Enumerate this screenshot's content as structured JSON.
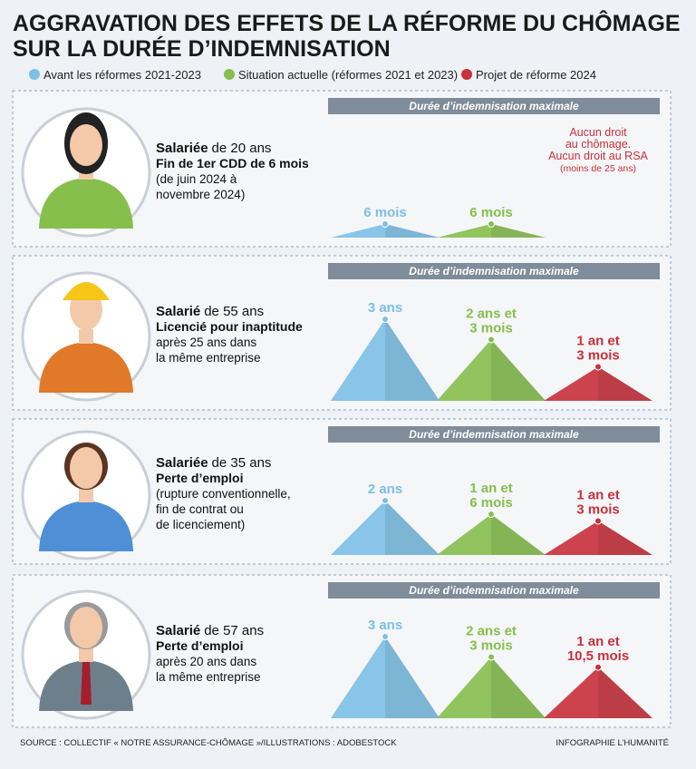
{
  "title": [
    "AGGRAVATION DES EFFETS DE LA RÉFORME DU CHÔMAGE",
    "SUR LA DURÉE D’INDEMNISATION"
  ],
  "legend": [
    {
      "label": "Avant les réformes 2021-2023",
      "color": "#7cc0e6"
    },
    {
      "label": "Situation actuelle (réformes 2021 et 2023)",
      "color": "#86bf4c"
    },
    {
      "label": "Projet de réforme 2024",
      "color": "#c8303a"
    }
  ],
  "panel_header": "Durée d’indemnisation maximale",
  "panels": [
    {
      "role": "Salariée",
      "age": "de 20 ans",
      "situation": [
        "Fin de 1er CDD de 6 mois"
      ],
      "details": [
        "(de juin 2024 à",
        "novembre 2024)"
      ],
      "durations": [
        {
          "value": 6,
          "label": [
            "6 mois"
          ]
        },
        {
          "value": 6,
          "label": [
            "6 mois"
          ]
        },
        {
          "value": 0,
          "label": [
            "Aucun droit",
            "au chômage.",
            "Aucun droit au RSA",
            "(moins de 25 ans)"
          ]
        }
      ]
    },
    {
      "role": "Salarié",
      "age": "de 55 ans",
      "situation": [
        "Licencié pour inaptitude"
      ],
      "details": [
        "après 25 ans dans",
        "la même entreprise"
      ],
      "durations": [
        {
          "value": 36,
          "label": [
            "3 ans"
          ]
        },
        {
          "value": 27,
          "label": [
            "2 ans et",
            "3 mois"
          ]
        },
        {
          "value": 15,
          "label": [
            "1 an et",
            "3 mois"
          ]
        }
      ]
    },
    {
      "role": "Salariée",
      "age": "de 35 ans",
      "situation": [
        "Perte d’emploi"
      ],
      "details": [
        "(rupture conventionnelle,",
        "fin de contrat ou",
        "de licenciement)"
      ],
      "durations": [
        {
          "value": 24,
          "label": [
            "2 ans"
          ]
        },
        {
          "value": 18,
          "label": [
            "1 an et",
            "6 mois"
          ]
        },
        {
          "value": 15,
          "label": [
            "1 an et",
            "3 mois"
          ]
        }
      ]
    },
    {
      "role": "Salarié",
      "age": "de 57 ans",
      "situation": [
        "Perte d’emploi"
      ],
      "details": [
        "après 20 ans dans",
        "la même entreprise"
      ],
      "durations": [
        {
          "value": 36,
          "label": [
            "3 ans"
          ]
        },
        {
          "value": 27,
          "label": [
            "2 ans et",
            "3 mois"
          ]
        },
        {
          "value": 22.5,
          "label": [
            "1 an et",
            "10,5 mois"
          ]
        }
      ]
    }
  ],
  "source": "SOURCE : COLLECTIF « NOTRE ASSURANCE-CHÔMAGE »/ILLUSTRATIONS : ADOBESTOCK",
  "credit": "INFOGRAPHIE L’HUMANITÉ"
}
